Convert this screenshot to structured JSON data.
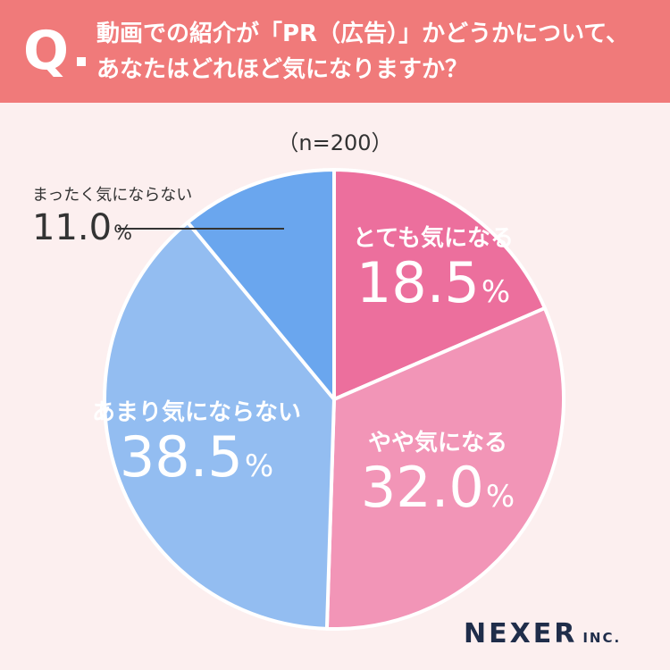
{
  "header": {
    "badge": "Q",
    "question_line1": "動画での紹介が「PR（広告）」かどうかについて、",
    "question_line2": "あなたはどれほど気になりますか？"
  },
  "sample_note": "（n=200）",
  "colors": {
    "header_bg": "#f07a7a",
    "background": "#fcefef",
    "slice_0": "#ec6f9d",
    "slice_1": "#f295b7",
    "slice_2": "#93bdf1",
    "slice_3": "#6aa6ee"
  },
  "chart_data": {
    "type": "pie",
    "categories": [
      "とても気になる",
      "やや気になる",
      "あまり気にならない",
      "まったく気にならない"
    ],
    "values": [
      18.5,
      32.0,
      38.5,
      11.0
    ],
    "value_labels": [
      "18.5",
      "32.0",
      "38.5",
      "11.0"
    ],
    "unit": "%",
    "title": "",
    "start_angle": "12 o'clock",
    "direction": "clockwise"
  },
  "logo": {
    "name": "NEXER",
    "suffix": "INC."
  }
}
